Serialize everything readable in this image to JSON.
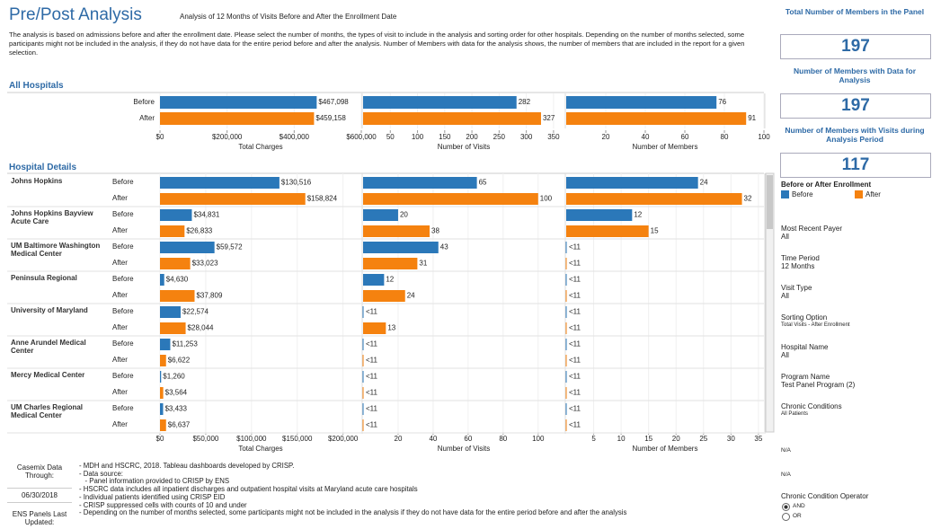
{
  "header": {
    "title": "Pre/Post Analysis",
    "subtitle": "Analysis of 12 Months of Visits Before and After the Enrollment Date",
    "description": "The analysis is based on admissions before and after the enrollment date. Please select the number of months, the types of visit to include in the analysis and sorting order for other hospitals. Depending on the number of months selected, some participants might not be included in the analysis, if they do not have data for the entire period before and after the analysis. Number of Members with data for the analysis shows, the number of members that are included in the report for a given selection."
  },
  "legend": {
    "title": "Before or After Enrollment",
    "items": [
      {
        "name": "Before",
        "color": "#2b78b9"
      },
      {
        "name": "After",
        "color": "#f5820f"
      }
    ]
  },
  "all_hospitals": {
    "title": "All Hospitals",
    "row_labels": [
      "Before",
      "After"
    ],
    "charts": [
      {
        "axis_title": "Total Charges",
        "xlim": [
          0,
          600000
        ],
        "xticks": [
          {
            "value": 0,
            "label": "$0"
          },
          {
            "value": 200000,
            "label": "$200,000"
          },
          {
            "value": 400000,
            "label": "$400,000"
          },
          {
            "value": 600000,
            "label": "$600,000"
          }
        ],
        "values": [
          467098,
          459158
        ],
        "value_labels": [
          "$467,098",
          "$459,158"
        ]
      },
      {
        "axis_title": "Number of Visits",
        "xlim": [
          0,
          370
        ],
        "xticks": [
          50,
          100,
          150,
          200,
          250,
          300,
          350
        ],
        "values": [
          282,
          327
        ]
      },
      {
        "axis_title": "Number of Members",
        "xlim": [
          0,
          100
        ],
        "xticks": [
          20,
          40,
          60,
          80,
          100
        ],
        "values": [
          76,
          91
        ]
      }
    ]
  },
  "hospital_details": {
    "title": "Hospital Details",
    "row_labels": [
      "Before",
      "After"
    ],
    "suppressed_label": "<11",
    "axes": [
      {
        "axis_title": "Total Charges",
        "xlim": [
          0,
          220000
        ],
        "xticks": [
          {
            "value": 0,
            "label": "$0"
          },
          {
            "value": 50000,
            "label": "$50,000"
          },
          {
            "value": 100000,
            "label": "$100,000"
          },
          {
            "value": 150000,
            "label": "$150,000"
          },
          {
            "value": 200000,
            "label": "$200,000"
          }
        ]
      },
      {
        "axis_title": "Number of Visits",
        "xlim": [
          0,
          115
        ],
        "xticks": [
          20,
          40,
          60,
          80,
          100
        ]
      },
      {
        "axis_title": "Number of Members",
        "xlim": [
          0,
          36
        ],
        "xticks": [
          5,
          10,
          15,
          20,
          25,
          30,
          35
        ]
      }
    ],
    "hospitals": [
      {
        "name": "Johns Hopkins",
        "metrics": [
          {
            "values": [
              130516,
              158824
            ],
            "value_labels": [
              "$130,516",
              "$158,824"
            ]
          },
          {
            "values": [
              65,
              100
            ]
          },
          {
            "values": [
              24,
              32
            ]
          }
        ]
      },
      {
        "name": "Johns Hopkins Bayview Acute Care",
        "metrics": [
          {
            "values": [
              34831,
              26833
            ],
            "value_labels": [
              "$34,831",
              "$26,833"
            ]
          },
          {
            "values": [
              20,
              38
            ]
          },
          {
            "values": [
              12,
              15
            ]
          }
        ]
      },
      {
        "name": "UM Baltimore Washington Medical Center",
        "metrics": [
          {
            "values": [
              59572,
              33023
            ],
            "value_labels": [
              "$59,572",
              "$33,023"
            ]
          },
          {
            "values": [
              43,
              31
            ]
          },
          {
            "values": [
              null,
              null
            ]
          }
        ]
      },
      {
        "name": "Peninsula Regional",
        "metrics": [
          {
            "values": [
              4630,
              37809
            ],
            "value_labels": [
              "$4,630",
              "$37,809"
            ]
          },
          {
            "values": [
              12,
              24
            ]
          },
          {
            "values": [
              null,
              null
            ]
          }
        ]
      },
      {
        "name": "University of Maryland",
        "metrics": [
          {
            "values": [
              22574,
              28044
            ],
            "value_labels": [
              "$22,574",
              "$28,044"
            ]
          },
          {
            "values": [
              null,
              13
            ]
          },
          {
            "values": [
              null,
              null
            ]
          }
        ]
      },
      {
        "name": "Anne Arundel Medical Center",
        "metrics": [
          {
            "values": [
              11253,
              6622
            ],
            "value_labels": [
              "$11,253",
              "$6,622"
            ]
          },
          {
            "values": [
              null,
              null
            ]
          },
          {
            "values": [
              null,
              null
            ]
          }
        ]
      },
      {
        "name": "Mercy Medical Center",
        "metrics": [
          {
            "values": [
              1260,
              3564
            ],
            "value_labels": [
              "$1,260",
              "$3,564"
            ]
          },
          {
            "values": [
              null,
              null
            ]
          },
          {
            "values": [
              null,
              null
            ]
          }
        ]
      },
      {
        "name": "UM Charles Regional Medical Center",
        "metrics": [
          {
            "values": [
              3433,
              6637
            ],
            "value_labels": [
              "$3,433",
              "$6,637"
            ]
          },
          {
            "values": [
              null,
              null
            ]
          },
          {
            "values": [
              null,
              null
            ]
          }
        ]
      }
    ]
  },
  "kpis": [
    {
      "label": "Total Number of Members in the Panel",
      "value": 197
    },
    {
      "label": "Number of Members with Data for Analysis",
      "value": 197
    },
    {
      "label": "Number of Members with Visits during Analysis Period",
      "value": 117
    }
  ],
  "filters": [
    {
      "label": "Most Recent Payer",
      "value": "All"
    },
    {
      "label": "Time Period",
      "value": "12 Months"
    },
    {
      "label": "Visit Type",
      "value": "All"
    },
    {
      "label": "Sorting Option",
      "value": "Total Visits - After Enrollment"
    },
    {
      "label": "Hospital Name",
      "value": "All"
    },
    {
      "label": "Program Name",
      "value": "Test Panel Program (2)"
    },
    {
      "label": "Chronic Conditions",
      "value": "All Patients"
    }
  ],
  "na": [
    "N/A",
    "N/A"
  ],
  "operator": {
    "label": "Chronic Condition Operator",
    "options": [
      "AND",
      "OR"
    ]
  },
  "footer": {
    "casemix_label": "Casemix Data Through:",
    "casemix_date": "06/30/2018",
    "ens_label": "ENS Panels Last Updated:",
    "notes": [
      "- MDH and HSCRC, 2018. Tableau dashboards developed by CRISP.",
      "- Data source:",
      "   - Panel information provided to CRISP by ENS",
      "- HSCRC data includes all inpatient discharges and outpatient hospital visits at Maryland acute care hospitals",
      "- Individual patients identified using CRISP EID",
      "- CRISP suppressed cells with counts of 10 and under",
      "- Depending on the number of months selected, some participants might not be included in the analysis if they do not have data for the entire period before and after the analysis"
    ]
  }
}
